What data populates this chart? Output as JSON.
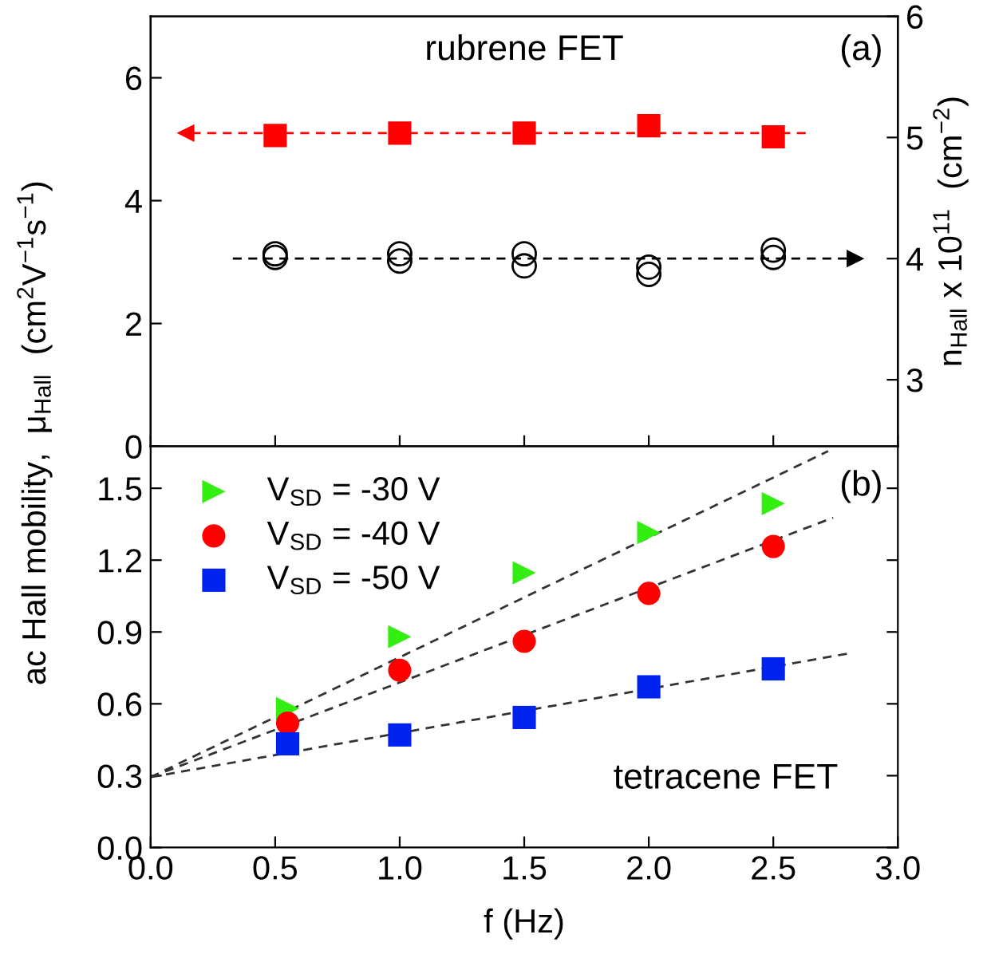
{
  "chart_data": [
    {
      "type": "scatter",
      "ylabel": "ac Hall mobility,  μ$_{Hall}$  (cm$^{2}$V$^{−1}$s$^{−1}$)",
      "y2label": "n$_{Hall}$ x 10$^{11}$  (cm$^{−2}$)",
      "xlim": [
        0,
        3
      ],
      "xticks": [
        0,
        0.5,
        1.0,
        1.5,
        2.0,
        2.5,
        3.0
      ],
      "ylim": [
        0,
        7
      ],
      "yticks": [
        0,
        2,
        4,
        6
      ],
      "y2lim": [
        2.45,
        6
      ],
      "y2ticks": [
        3,
        4,
        5,
        6
      ],
      "tick_labels": "y",
      "annotations": [
        "rubrene FET",
        "(a)"
      ],
      "series": [
        {
          "marker": "square",
          "color": "#ff0000",
          "x": [
            0.5,
            1.0,
            1.5,
            2.0,
            2.5
          ],
          "values": [
            5.06,
            5.1,
            5.1,
            5.22,
            5.04
          ]
        },
        {
          "marker": "circle",
          "axis": "y2",
          "color": "#000000",
          "x": [
            0.5,
            0.5,
            1.0,
            1.0,
            1.5,
            1.5,
            2.0,
            2.0,
            2.5,
            2.5
          ],
          "values": [
            4.04,
            4.01,
            4.04,
            3.98,
            4.04,
            3.94,
            3.93,
            3.87,
            4.07,
            4.01
          ]
        },
        {
          "type": "line",
          "line_style": "dashed",
          "marker": "triangle",
          "color": "#ff0000",
          "x": [
            2.63,
            0.14
          ],
          "values": [
            5.1,
            5.1
          ]
        },
        {
          "type": "line",
          "line_style": "dashed",
          "marker": "triangle",
          "axis": "y2",
          "color": "#000000",
          "x": [
            0.33,
            2.83
          ],
          "values": [
            4.0,
            4.0
          ]
        }
      ]
    },
    {
      "type": "scatter",
      "xlabel": "f (Hz)",
      "xlim": [
        0,
        3
      ],
      "xticks": [
        {
          "value": 0,
          "label": "0.0"
        },
        0.5,
        {
          "value": 1,
          "label": "1.0"
        },
        1.5,
        {
          "value": 2,
          "label": "2.0"
        },
        2.5,
        {
          "value": 3,
          "label": "3.0"
        }
      ],
      "ylim": [
        0,
        1.675
      ],
      "yticks": [
        {
          "value": 0,
          "label": "0.0"
        },
        0.3,
        0.6,
        0.9,
        1.2,
        1.5
      ],
      "legend": "top left",
      "annotations": [
        "tetracene FET",
        "(b)"
      ],
      "series": [
        {
          "name": "V$_{SD}$ = -30 V",
          "marker": "triangle",
          "color": "#33ee11",
          "x": [
            0.55,
            1.0,
            1.5,
            2.0,
            2.5
          ],
          "values": [
            0.58,
            0.88,
            1.147,
            1.315,
            1.436
          ]
        },
        {
          "name": "V$_{SD}$ = -40 V",
          "marker": "circle",
          "color": "#ff0000",
          "x": [
            0.55,
            1.0,
            1.5,
            2.0,
            2.5
          ],
          "values": [
            0.519,
            0.74,
            0.861,
            1.061,
            1.257
          ]
        },
        {
          "name": "V$_{SD}$ = -50 V",
          "marker": "square",
          "color": "#0022ee",
          "x": [
            0.55,
            1.0,
            1.5,
            2.0,
            2.5
          ],
          "values": [
            0.433,
            0.47,
            0.543,
            0.671,
            0.746
          ]
        },
        {
          "type": "line",
          "line_style": "dashed",
          "color": "#333333",
          "x": [
            0,
            2.72
          ],
          "values": [
            0.294,
            1.655
          ]
        },
        {
          "type": "line",
          "line_style": "dashed",
          "color": "#333333",
          "x": [
            0,
            2.74
          ],
          "values": [
            0.294,
            1.377
          ]
        },
        {
          "type": "line",
          "line_style": "dashed",
          "color": "#333333",
          "x": [
            0,
            2.8
          ],
          "values": [
            0.294,
            0.81
          ]
        }
      ]
    }
  ]
}
